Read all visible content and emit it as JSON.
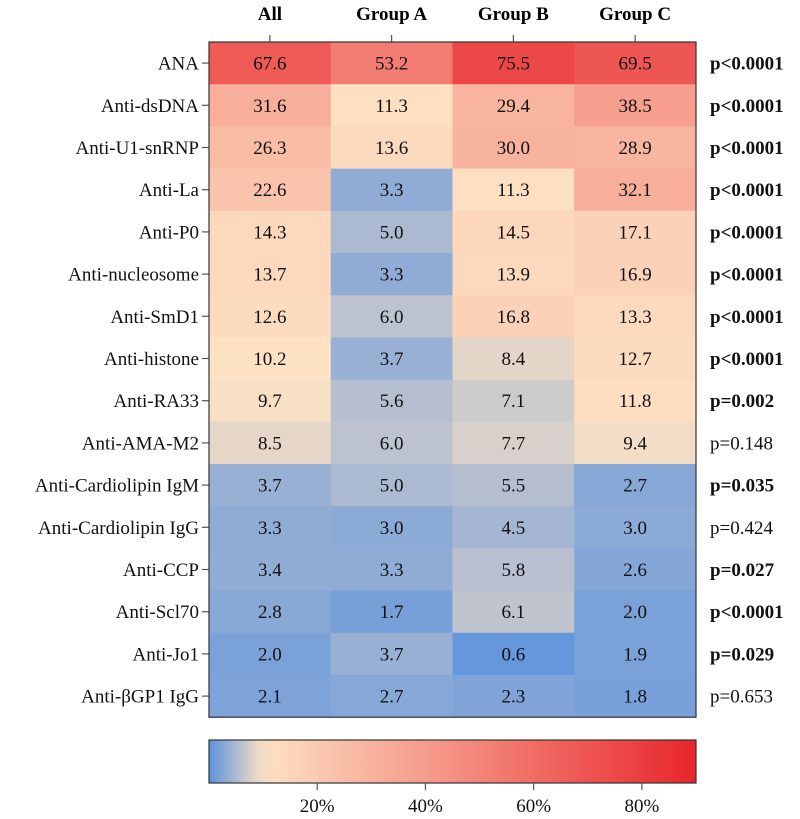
{
  "chart_data": {
    "type": "heatmap",
    "columns": [
      "All",
      "Group A",
      "Group B",
      "Group C"
    ],
    "rows": [
      {
        "label": "ANA",
        "values": [
          67.6,
          53.2,
          75.5,
          69.5
        ],
        "p": "p<0.0001",
        "significant": true
      },
      {
        "label": "Anti-dsDNA",
        "values": [
          31.6,
          11.3,
          29.4,
          38.5
        ],
        "p": "p<0.0001",
        "significant": true
      },
      {
        "label": "Anti-U1-snRNP",
        "values": [
          26.3,
          13.6,
          30.0,
          28.9
        ],
        "p": "p<0.0001",
        "significant": true
      },
      {
        "label": "Anti-La",
        "values": [
          22.6,
          3.3,
          11.3,
          32.1
        ],
        "p": "p<0.0001",
        "significant": true
      },
      {
        "label": "Anti-P0",
        "values": [
          14.3,
          5.0,
          14.5,
          17.1
        ],
        "p": "p<0.0001",
        "significant": true
      },
      {
        "label": "Anti-nucleosome",
        "values": [
          13.7,
          3.3,
          13.9,
          16.9
        ],
        "p": "p<0.0001",
        "significant": true
      },
      {
        "label": "Anti-SmD1",
        "values": [
          12.6,
          6.0,
          16.8,
          13.3
        ],
        "p": "p<0.0001",
        "significant": true
      },
      {
        "label": "Anti-histone",
        "values": [
          10.2,
          3.7,
          8.4,
          12.7
        ],
        "p": "p<0.0001",
        "significant": true
      },
      {
        "label": "Anti-RA33",
        "values": [
          9.7,
          5.6,
          7.1,
          11.8
        ],
        "p": "p=0.002",
        "significant": true
      },
      {
        "label": "Anti-AMA-M2",
        "values": [
          8.5,
          6.0,
          7.7,
          9.4
        ],
        "p": "p=0.148",
        "significant": false
      },
      {
        "label": "Anti-Cardiolipin IgM",
        "values": [
          3.7,
          5.0,
          5.5,
          2.7
        ],
        "p": "p=0.035",
        "significant": true
      },
      {
        "label": "Anti-Cardiolipin IgG",
        "values": [
          3.3,
          3.0,
          4.5,
          3.0
        ],
        "p": "p=0.424",
        "significant": false
      },
      {
        "label": "Anti-CCP",
        "values": [
          3.4,
          3.3,
          5.8,
          2.6
        ],
        "p": "p=0.027",
        "significant": true
      },
      {
        "label": "Anti-Scl70",
        "values": [
          2.8,
          1.7,
          6.1,
          2.0
        ],
        "p": "p<0.0001",
        "significant": true
      },
      {
        "label": "Anti-Jo1",
        "values": [
          2.0,
          3.7,
          0.6,
          1.9
        ],
        "p": "p=0.029",
        "significant": true
      },
      {
        "label": "Anti-βGP1 IgG",
        "values": [
          2.1,
          2.7,
          2.3,
          1.8
        ],
        "p": "p=0.653",
        "significant": false
      }
    ],
    "colorbar": {
      "range": [
        0,
        90
      ],
      "ticks": [
        20,
        40,
        60,
        80
      ],
      "tick_labels": [
        "20%",
        "40%",
        "60%",
        "80%"
      ],
      "colors": {
        "low": "#5b92dd",
        "mid": "#fde2c4",
        "high": "#e8262c"
      },
      "mid_value": 10
    }
  }
}
